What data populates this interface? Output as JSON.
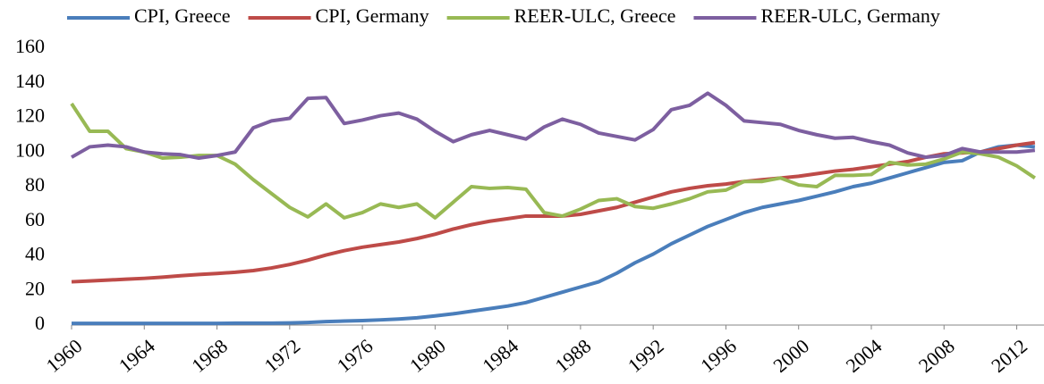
{
  "chart_data": {
    "type": "line",
    "x": [
      1960,
      1961,
      1962,
      1963,
      1964,
      1965,
      1966,
      1967,
      1968,
      1969,
      1970,
      1971,
      1972,
      1973,
      1974,
      1975,
      1976,
      1977,
      1978,
      1979,
      1980,
      1981,
      1982,
      1983,
      1984,
      1985,
      1986,
      1987,
      1988,
      1989,
      1990,
      1991,
      1992,
      1993,
      1994,
      1995,
      1996,
      1997,
      1998,
      1999,
      2000,
      2001,
      2002,
      2003,
      2004,
      2005,
      2006,
      2007,
      2008,
      2009,
      2010,
      2011,
      2012,
      2013
    ],
    "series": [
      {
        "name": "CPI, Greece",
        "color": "#4a7ebb",
        "values": [
          1,
          1,
          1,
          1,
          1,
          1,
          1,
          1,
          1,
          1.1,
          1.1,
          1.1,
          1.2,
          1.5,
          2,
          2.3,
          2.6,
          3,
          3.5,
          4.2,
          5.3,
          6.5,
          8,
          9.5,
          11,
          13,
          16,
          19,
          22,
          25,
          30,
          36,
          41,
          47,
          52,
          57,
          61,
          65,
          68,
          70,
          72,
          74.5,
          77,
          80,
          82,
          85,
          88,
          91,
          94,
          95,
          100,
          103,
          104,
          103
        ]
      },
      {
        "name": "CPI, Germany",
        "color": "#be4b48",
        "values": [
          25,
          25.5,
          26,
          26.5,
          27,
          27.7,
          28.5,
          29.2,
          29.8,
          30.5,
          31.5,
          33,
          35,
          37.5,
          40.5,
          43,
          45,
          46.5,
          48,
          50,
          52.5,
          55.5,
          58,
          60,
          61.5,
          63,
          63,
          63,
          64,
          66,
          68,
          71,
          74,
          77,
          79,
          80.5,
          81.5,
          83,
          84,
          85,
          86,
          87.5,
          89,
          90,
          91.5,
          93,
          94.5,
          97,
          99,
          99.5,
          100,
          102,
          104,
          105.5
        ]
      },
      {
        "name": "REER-ULC, Greece",
        "color": "#98b954",
        "values": [
          128,
          112,
          112,
          102,
          100,
          96.5,
          97,
          98,
          98,
          93,
          84,
          76,
          68,
          62.5,
          70,
          62,
          65,
          70,
          68,
          70,
          62,
          71,
          80,
          79,
          79.5,
          78.5,
          65,
          63,
          67,
          72,
          73,
          68.5,
          67.5,
          70,
          73,
          77,
          78,
          83,
          83,
          85,
          81,
          80,
          86.5,
          86.5,
          87,
          94,
          92.5,
          93,
          96,
          100,
          99,
          97,
          92,
          85
        ]
      },
      {
        "name": "REER-ULC, Germany",
        "color": "#7d5fa0",
        "values": [
          97,
          103,
          104,
          103,
          100,
          99,
          98.5,
          96.5,
          98,
          100,
          114,
          118,
          119.5,
          131,
          131.5,
          116.5,
          118.5,
          121,
          122.5,
          119,
          112,
          106,
          110,
          112.5,
          110,
          107.5,
          114.5,
          119,
          116,
          111,
          109,
          107,
          113,
          124.5,
          127,
          134,
          127,
          118,
          117,
          116,
          112.5,
          110,
          108,
          108.5,
          106,
          104,
          99.5,
          97,
          98,
          102,
          100,
          100,
          100,
          101
        ]
      }
    ],
    "xlim": [
      1960,
      2013.5
    ],
    "xticks": [
      1960,
      1964,
      1968,
      1972,
      1976,
      1980,
      1984,
      1988,
      1992,
      1996,
      2000,
      2004,
      2008,
      2012
    ],
    "ylim": [
      0,
      160
    ],
    "yticks": [
      0,
      20,
      40,
      60,
      80,
      100,
      120,
      140,
      160
    ],
    "grid": false,
    "legend": "top"
  }
}
